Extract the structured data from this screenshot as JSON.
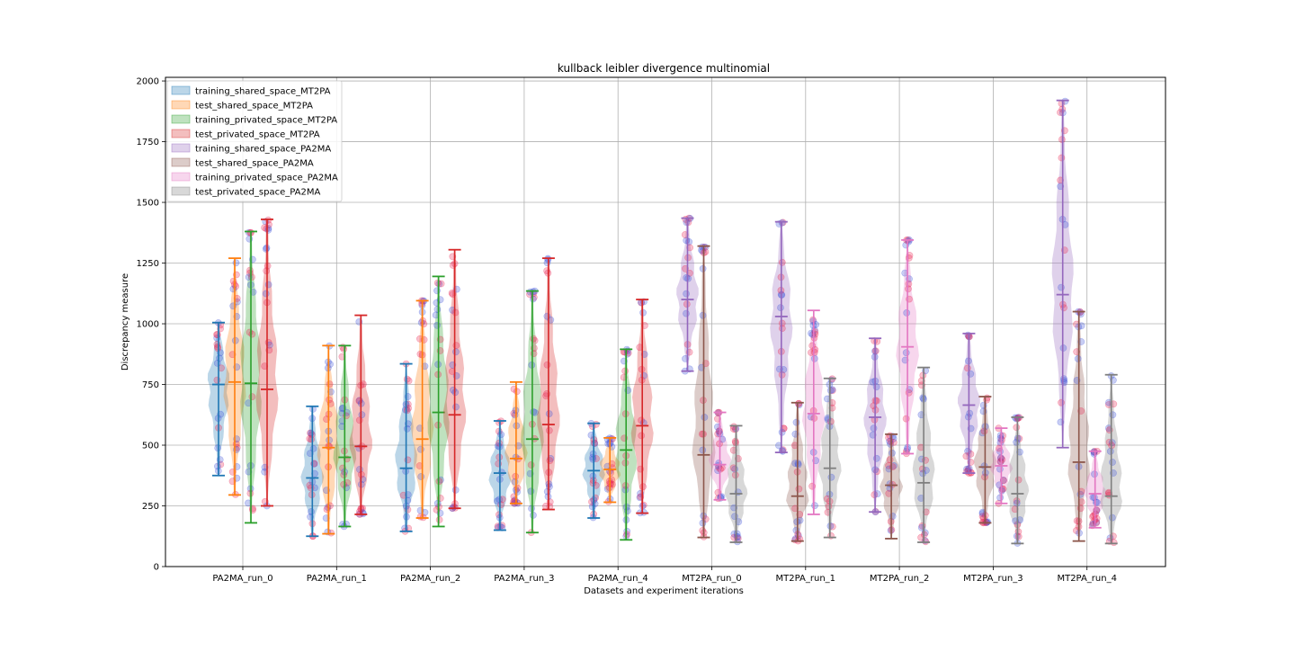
{
  "chart_data": {
    "type": "violin",
    "title": "kullback leibler divergence multinomial",
    "xlabel": "Datasets and experiment iterations",
    "ylabel": "Discrepancy measure",
    "ylim": [
      0,
      2000
    ],
    "yticks": [
      0,
      250,
      500,
      750,
      1000,
      1250,
      1500,
      1750,
      2000
    ],
    "categories": [
      "PA2MA_run_0",
      "PA2MA_run_1",
      "PA2MA_run_2",
      "PA2MA_run_3",
      "PA2MA_run_4",
      "MT2PA_run_0",
      "MT2PA_run_1",
      "MT2PA_run_2",
      "MT2PA_run_3",
      "MT2PA_run_4"
    ],
    "grid": true,
    "legend_position": "top-left",
    "series": [
      {
        "name": "training_shared_space_MT2PA",
        "color": "#1f77b4",
        "values": [
          {
            "category": "PA2MA_run_0",
            "min": 375,
            "max": 1005,
            "median": 750
          },
          {
            "category": "PA2MA_run_1",
            "min": 125,
            "max": 660,
            "median": 365
          },
          {
            "category": "PA2MA_run_2",
            "min": 145,
            "max": 835,
            "median": 405
          },
          {
            "category": "PA2MA_run_3",
            "min": 150,
            "max": 600,
            "median": 385
          },
          {
            "category": "PA2MA_run_4",
            "min": 200,
            "max": 590,
            "median": 395
          }
        ]
      },
      {
        "name": "test_shared_space_MT2PA",
        "color": "#ff7f0e",
        "values": [
          {
            "category": "PA2MA_run_0",
            "min": 295,
            "max": 1270,
            "median": 760
          },
          {
            "category": "PA2MA_run_1",
            "min": 135,
            "max": 910,
            "median": 490
          },
          {
            "category": "PA2MA_run_2",
            "min": 200,
            "max": 1095,
            "median": 525
          },
          {
            "category": "PA2MA_run_3",
            "min": 260,
            "max": 760,
            "median": 445
          },
          {
            "category": "PA2MA_run_4",
            "min": 265,
            "max": 530,
            "median": 400
          }
        ]
      },
      {
        "name": "training_privated_space_MT2PA",
        "color": "#2ca02c",
        "values": [
          {
            "category": "PA2MA_run_0",
            "min": 180,
            "max": 1380,
            "median": 755
          },
          {
            "category": "PA2MA_run_1",
            "min": 165,
            "max": 910,
            "median": 450
          },
          {
            "category": "PA2MA_run_2",
            "min": 165,
            "max": 1195,
            "median": 635
          },
          {
            "category": "PA2MA_run_3",
            "min": 140,
            "max": 1135,
            "median": 525
          },
          {
            "category": "PA2MA_run_4",
            "min": 110,
            "max": 895,
            "median": 480
          }
        ]
      },
      {
        "name": "test_privated_space_MT2PA",
        "color": "#d62728",
        "values": [
          {
            "category": "PA2MA_run_0",
            "min": 250,
            "max": 1430,
            "median": 730
          },
          {
            "category": "PA2MA_run_1",
            "min": 215,
            "max": 1035,
            "median": 495
          },
          {
            "category": "PA2MA_run_2",
            "min": 240,
            "max": 1305,
            "median": 625
          },
          {
            "category": "PA2MA_run_3",
            "min": 235,
            "max": 1270,
            "median": 585
          },
          {
            "category": "PA2MA_run_4",
            "min": 220,
            "max": 1100,
            "median": 580
          }
        ]
      },
      {
        "name": "training_shared_space_PA2MA",
        "color": "#9467bd",
        "values": [
          {
            "category": "MT2PA_run_0",
            "min": 805,
            "max": 1435,
            "median": 1100
          },
          {
            "category": "MT2PA_run_1",
            "min": 470,
            "max": 1420,
            "median": 1030
          },
          {
            "category": "MT2PA_run_2",
            "min": 225,
            "max": 940,
            "median": 615
          },
          {
            "category": "MT2PA_run_3",
            "min": 385,
            "max": 960,
            "median": 665
          },
          {
            "category": "MT2PA_run_4",
            "min": 490,
            "max": 1920,
            "median": 1120
          }
        ]
      },
      {
        "name": "test_shared_space_PA2MA",
        "color": "#8c564b",
        "values": [
          {
            "category": "MT2PA_run_0",
            "min": 120,
            "max": 1320,
            "median": 460
          },
          {
            "category": "MT2PA_run_1",
            "min": 105,
            "max": 675,
            "median": 290
          },
          {
            "category": "MT2PA_run_2",
            "min": 115,
            "max": 545,
            "median": 335
          },
          {
            "category": "MT2PA_run_3",
            "min": 180,
            "max": 700,
            "median": 410
          },
          {
            "category": "MT2PA_run_4",
            "min": 105,
            "max": 1050,
            "median": 430
          }
        ]
      },
      {
        "name": "training_privated_space_PA2MA",
        "color": "#e377c2",
        "values": [
          {
            "category": "MT2PA_run_0",
            "min": 275,
            "max": 635,
            "median": 420
          },
          {
            "category": "MT2PA_run_1",
            "min": 215,
            "max": 1055,
            "median": 630
          },
          {
            "category": "MT2PA_run_2",
            "min": 465,
            "max": 1345,
            "median": 905
          },
          {
            "category": "MT2PA_run_3",
            "min": 260,
            "max": 570,
            "median": 415
          },
          {
            "category": "MT2PA_run_4",
            "min": 160,
            "max": 475,
            "median": 300
          }
        ]
      },
      {
        "name": "test_privated_space_PA2MA",
        "color": "#7f7f7f",
        "values": [
          {
            "category": "MT2PA_run_0",
            "min": 100,
            "max": 580,
            "median": 300
          },
          {
            "category": "MT2PA_run_1",
            "min": 120,
            "max": 775,
            "median": 405
          },
          {
            "category": "MT2PA_run_2",
            "min": 100,
            "max": 820,
            "median": 345
          },
          {
            "category": "MT2PA_run_3",
            "min": 95,
            "max": 615,
            "median": 300
          },
          {
            "category": "MT2PA_run_4",
            "min": 95,
            "max": 790,
            "median": 290
          }
        ]
      }
    ]
  }
}
